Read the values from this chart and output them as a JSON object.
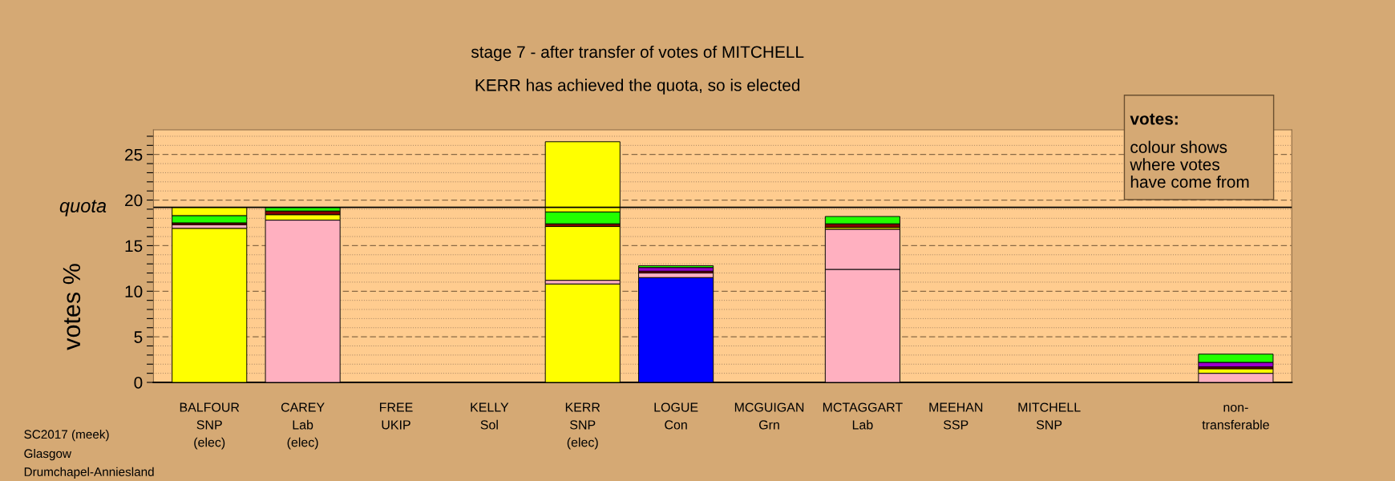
{
  "chart_data": {
    "type": "bar",
    "stacked": true,
    "title": "stage 7 - after transfer of votes of MITCHELL",
    "subtitle": "KERR has achieved the quota, so is elected",
    "ylabel": "votes %",
    "categories": [
      "BALFOUR\nSNP\n(elec)",
      "CAREY\nLab\n(elec)",
      "FREE\nUKIP",
      "KELLY\nSol",
      "KERR\nSNP\n(elec)",
      "LOGUE\nCon",
      "MCGUIGAN\nGrn",
      "MCTAGGART\nLab",
      "MEEHAN\nSSP",
      "MITCHELL\nSNP",
      null,
      "non-\ntransferable"
    ],
    "series": [
      {
        "values": [
          16.9,
          17.8,
          null,
          null,
          10.8,
          11.5,
          null,
          12.4,
          null,
          null,
          null,
          1.0
        ],
        "colors": [
          "#ffff00",
          "#ffb0c0",
          null,
          null,
          "#ffff00",
          "#0000ff",
          null,
          "#ffb0c0",
          null,
          null,
          null,
          "#ffb0c0"
        ]
      },
      {
        "values": [
          0.4,
          0.6,
          null,
          null,
          0.4,
          0.5,
          null,
          4.4,
          null,
          null,
          null,
          0.5
        ],
        "colors": [
          "#ffb0c0",
          "#ffff00",
          null,
          null,
          "#ffb0c0",
          "#ffb0c0",
          null,
          "#ffb0c0",
          null,
          null,
          null,
          "#ffff00"
        ]
      },
      {
        "values": [
          0.2,
          0.4,
          null,
          null,
          5.9,
          0.2,
          null,
          0.2,
          null,
          null,
          null,
          0.2
        ],
        "colors": [
          "#800000",
          "#800000",
          null,
          null,
          "#ffff00",
          "#800000",
          null,
          "#ffff00",
          null,
          null,
          null,
          "#800000"
        ]
      },
      {
        "values": [
          0.8,
          0.4,
          null,
          null,
          0.3,
          0.4,
          null,
          0.4,
          null,
          null,
          null,
          0.5
        ],
        "colors": [
          "#22ff00",
          "#22ff00",
          null,
          null,
          "#800000",
          "#9900cc",
          null,
          "#800000",
          null,
          null,
          null,
          "#9900cc"
        ]
      },
      {
        "values": [
          0.9,
          null,
          null,
          null,
          1.3,
          0.2,
          null,
          0.8,
          null,
          null,
          null,
          0.9
        ],
        "colors": [
          "#ffff00",
          null,
          null,
          null,
          "#22ff00",
          "#22ff00",
          null,
          "#22ff00",
          null,
          null,
          null,
          "#22ff00"
        ]
      },
      {
        "values": [
          null,
          null,
          null,
          null,
          7.7,
          null,
          null,
          null,
          null,
          null,
          null,
          null
        ],
        "colors": [
          null,
          null,
          null,
          null,
          "#ffff00",
          null,
          null,
          null,
          null,
          null,
          null,
          null
        ]
      }
    ],
    "ylim": [
      0,
      27.7
    ],
    "yticks": [
      0,
      {
        "value": 1,
        "label": null
      },
      {
        "value": 2,
        "label": null
      },
      {
        "value": 3,
        "label": null
      },
      {
        "value": 4,
        "label": null
      },
      5,
      {
        "value": 6,
        "label": null
      },
      {
        "value": 7,
        "label": null
      },
      {
        "value": 8,
        "label": null
      },
      {
        "value": 9,
        "label": null
      },
      10,
      {
        "value": 11,
        "label": null
      },
      {
        "value": 12,
        "label": null
      },
      {
        "value": 13,
        "label": null
      },
      {
        "value": 14,
        "label": null
      },
      15,
      {
        "value": 16,
        "label": null
      },
      {
        "value": 17,
        "label": null
      },
      {
        "value": 18,
        "label": null
      },
      {
        "value": 19,
        "label": null
      },
      20,
      {
        "value": 21,
        "label": null
      },
      {
        "value": 22,
        "label": null
      },
      {
        "value": 23,
        "label": null
      },
      {
        "value": 24,
        "label": null
      },
      25,
      {
        "value": 26,
        "label": null
      },
      {
        "value": 27,
        "label": null
      }
    ],
    "grid": "y",
    "ref_lines": [
      {
        "axis": "y",
        "value": 19.2,
        "label": "quota",
        "color": "#000000",
        "line_style": "solid"
      }
    ],
    "annotations": [
      "votes:",
      "colour shows\nwhere votes\nhave come from",
      "SC2017 (meek)",
      "Glasgow",
      "Drumchapel-Anniesland"
    ]
  }
}
